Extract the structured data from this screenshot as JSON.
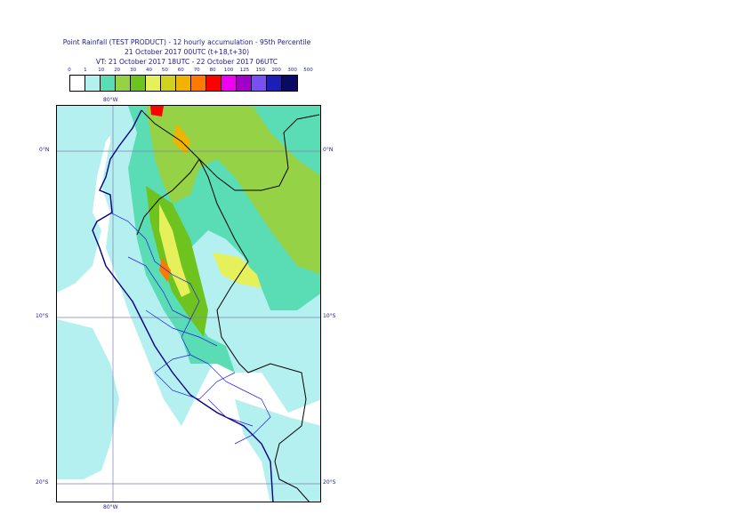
{
  "title": {
    "line1": "Point Rainfall (TEST PRODUCT) - 12 hourly accumulation - 95th Percentile",
    "line2": "21 October 2017 00UTC (t+18,t+30)",
    "line3": "VT: 21 October 2017 18UTC - 22 October 2017 06UTC"
  },
  "legend": {
    "ticks": [
      "0",
      "1",
      "10",
      "20",
      "30",
      "40",
      "50",
      "60",
      "70",
      "80",
      "100",
      "125",
      "150",
      "200",
      "300",
      "500"
    ],
    "colors": [
      "#ffffff",
      "#b4f0f0",
      "#5adcb4",
      "#96d246",
      "#6ec31e",
      "#e6f05a",
      "#d2d21e",
      "#f0b400",
      "#ff7800",
      "#ff0000",
      "#f000f0",
      "#a000c8",
      "#7850f0",
      "#1e1eb4",
      "#0a0a64"
    ]
  },
  "map": {
    "gridlines": {
      "lon_top": "80°W",
      "lon_bottom": "80°W",
      "lat_0_left": "0°N",
      "lat_0_right": "0°N",
      "lat_10_left": "10°S",
      "lat_10_right": "10°S",
      "lat_20_left": "20°S",
      "lat_20_right": "20°S"
    },
    "projection_extent": "approx 83.5°W–68°W, 3°N–21°S"
  }
}
